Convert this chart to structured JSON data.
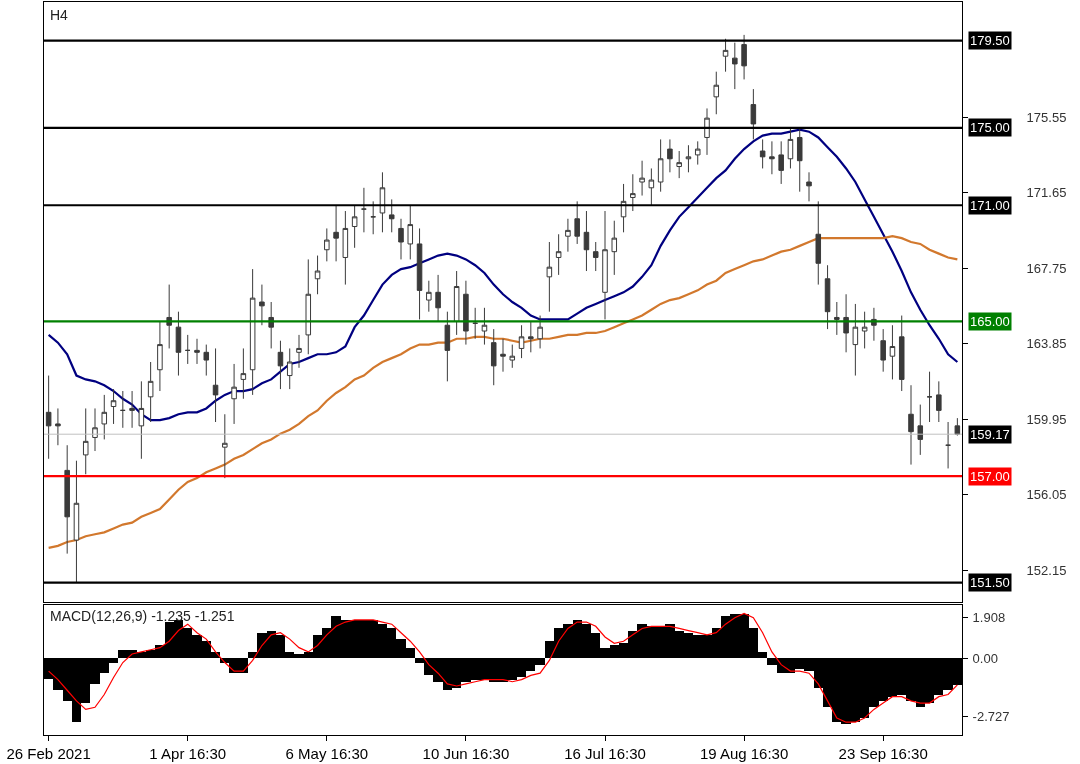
{
  "chart_data": [
    {
      "type": "candlestick",
      "title": "H4",
      "tick_labels": "y",
      "ohlc": [
        [
          160.3,
          162.2,
          157.9,
          159.6
        ],
        [
          159.7,
          160.5,
          158.6,
          159.6
        ],
        [
          157.3,
          158.6,
          153.0,
          154.9
        ],
        [
          153.7,
          157.8,
          151.5,
          155.6
        ],
        [
          158.1,
          160.5,
          157.1,
          158.8
        ],
        [
          159.0,
          160.5,
          158.3,
          159.5
        ],
        [
          159.7,
          161.2,
          158.9,
          160.3
        ],
        [
          160.6,
          161.5,
          159.7,
          160.9
        ],
        [
          160.4,
          161.4,
          159.5,
          160.4
        ],
        [
          160.5,
          161.4,
          159.5,
          160.4
        ],
        [
          159.6,
          161.9,
          157.9,
          160.5
        ],
        [
          161.1,
          162.9,
          159.8,
          161.9
        ],
        [
          162.5,
          165.0,
          161.4,
          163.8
        ],
        [
          165.2,
          166.9,
          163.6,
          164.8
        ],
        [
          164.7,
          165.5,
          162.2,
          163.4
        ],
        [
          163.5,
          164.3,
          162.8,
          163.5
        ],
        [
          163.5,
          164.1,
          162.8,
          163.4
        ],
        [
          163.4,
          163.8,
          162.2,
          163.0
        ],
        [
          161.7,
          163.6,
          159.8,
          161.2
        ],
        [
          158.5,
          160.2,
          156.9,
          158.7
        ],
        [
          161.0,
          162.8,
          159.7,
          161.6
        ],
        [
          162.0,
          163.6,
          161.0,
          162.3
        ],
        [
          162.5,
          167.7,
          161.2,
          166.2
        ],
        [
          166.0,
          166.9,
          164.8,
          165.8
        ],
        [
          165.2,
          166.0,
          163.6,
          164.7
        ],
        [
          163.4,
          164.0,
          161.5,
          162.7
        ],
        [
          162.2,
          163.6,
          161.5,
          162.9
        ],
        [
          163.4,
          164.3,
          162.6,
          163.6
        ],
        [
          164.3,
          168.2,
          163.3,
          166.4
        ],
        [
          167.2,
          168.4,
          166.4,
          167.6
        ],
        [
          168.7,
          169.8,
          168.1,
          169.2
        ],
        [
          169.6,
          171.0,
          168.1,
          169.3
        ],
        [
          168.3,
          170.7,
          166.9,
          169.8
        ],
        [
          169.9,
          171.0,
          168.8,
          170.4
        ],
        [
          170.8,
          171.9,
          169.6,
          170.8
        ],
        [
          170.4,
          171.2,
          169.5,
          170.4
        ],
        [
          170.6,
          172.7,
          169.6,
          171.9
        ],
        [
          170.5,
          171.3,
          169.6,
          170.3
        ],
        [
          169.8,
          170.3,
          168.2,
          169.1
        ],
        [
          169.0,
          171.0,
          168.2,
          170.0
        ],
        [
          169.0,
          169.8,
          165.1,
          166.6
        ],
        [
          166.1,
          167.1,
          165.5,
          166.5
        ],
        [
          166.5,
          167.4,
          165.0,
          165.7
        ],
        [
          164.8,
          165.5,
          161.9,
          163.5
        ],
        [
          165.0,
          167.6,
          164.3,
          166.8
        ],
        [
          166.4,
          167.1,
          163.8,
          164.5
        ],
        [
          164.9,
          165.7,
          164.1,
          164.9
        ],
        [
          164.5,
          165.7,
          163.8,
          164.8
        ],
        [
          163.9,
          164.6,
          161.7,
          162.7
        ],
        [
          163.3,
          164.1,
          162.4,
          163.2
        ],
        [
          163.0,
          163.8,
          162.6,
          163.2
        ],
        [
          163.6,
          164.8,
          163.1,
          164.2
        ],
        [
          164.2,
          165.0,
          163.4,
          164.1
        ],
        [
          164.1,
          165.3,
          163.6,
          164.7
        ],
        [
          167.3,
          169.1,
          165.5,
          167.8
        ],
        [
          168.3,
          169.5,
          167.4,
          168.6
        ],
        [
          169.4,
          170.3,
          168.6,
          169.7
        ],
        [
          170.3,
          171.2,
          169.0,
          169.4
        ],
        [
          169.6,
          170.7,
          167.6,
          168.7
        ],
        [
          168.6,
          169.1,
          167.6,
          168.3
        ],
        [
          166.5,
          170.7,
          165.1,
          168.7
        ],
        [
          168.6,
          170.2,
          167.4,
          169.3
        ],
        [
          170.4,
          172.1,
          169.6,
          171.2
        ],
        [
          171.4,
          172.6,
          170.7,
          171.6
        ],
        [
          172.2,
          173.3,
          171.5,
          172.4
        ],
        [
          171.9,
          172.9,
          171.0,
          172.3
        ],
        [
          172.2,
          174.4,
          171.7,
          173.4
        ],
        [
          173.9,
          174.4,
          172.7,
          173.4
        ],
        [
          173.0,
          173.8,
          172.4,
          173.2
        ],
        [
          173.4,
          174.1,
          172.7,
          173.5
        ],
        [
          173.6,
          174.3,
          173.1,
          173.9
        ],
        [
          174.5,
          176.0,
          173.6,
          175.5
        ],
        [
          176.6,
          177.9,
          175.7,
          177.2
        ],
        [
          178.7,
          179.6,
          177.9,
          179.0
        ],
        [
          178.6,
          179.4,
          177.0,
          178.3
        ],
        [
          179.3,
          179.8,
          177.5,
          178.2
        ],
        [
          176.2,
          177.0,
          174.4,
          175.2
        ],
        [
          173.8,
          174.4,
          172.9,
          173.5
        ],
        [
          173.5,
          174.3,
          172.6,
          173.4
        ],
        [
          173.6,
          174.3,
          172.1,
          172.8
        ],
        [
          173.4,
          175.0,
          172.9,
          174.4
        ],
        [
          174.5,
          175.0,
          171.7,
          173.3
        ],
        [
          172.2,
          172.7,
          171.2,
          172.0
        ],
        [
          169.5,
          171.2,
          166.9,
          168.0
        ],
        [
          167.2,
          167.9,
          164.6,
          165.5
        ],
        [
          165.2,
          166.0,
          164.3,
          165.1
        ],
        [
          165.2,
          166.4,
          163.4,
          164.4
        ],
        [
          163.8,
          165.9,
          162.2,
          164.7
        ],
        [
          164.5,
          165.5,
          163.6,
          164.7
        ],
        [
          165.1,
          165.7,
          164.0,
          164.8
        ],
        [
          164.0,
          164.6,
          162.4,
          163.0
        ],
        [
          163.2,
          164.8,
          162.0,
          163.7
        ],
        [
          164.2,
          165.3,
          161.4,
          162.0
        ],
        [
          160.2,
          161.7,
          157.6,
          159.3
        ],
        [
          159.6,
          160.7,
          158.1,
          158.9
        ],
        [
          161.1,
          162.4,
          159.8,
          161.1
        ],
        [
          161.2,
          161.9,
          159.8,
          160.4
        ],
        [
          158.6,
          159.8,
          157.4,
          158.6
        ],
        [
          159.6,
          160.0,
          159.1,
          159.17
        ]
      ],
      "series": [
        {
          "type": "line",
          "color": "#000080",
          "values": [
            164.3,
            163.9,
            163.3,
            162.2,
            162.0,
            161.9,
            161.7,
            161.4,
            161.0,
            160.7,
            160.2,
            159.9,
            159.9,
            160.0,
            160.2,
            160.3,
            160.3,
            160.5,
            160.9,
            161.2,
            161.4,
            161.4,
            161.5,
            161.8,
            162.0,
            162.4,
            162.8,
            162.9,
            163.1,
            163.3,
            163.3,
            163.4,
            163.7,
            164.7,
            165.3,
            166.1,
            166.9,
            167.4,
            167.7,
            167.8,
            168.0,
            168.2,
            168.4,
            168.5,
            168.4,
            168.2,
            167.9,
            167.5,
            166.9,
            166.4,
            166.0,
            165.7,
            165.3,
            165.1,
            165.1,
            165.1,
            165.1,
            165.4,
            165.7,
            165.9,
            166.1,
            166.3,
            166.5,
            166.8,
            167.3,
            167.9,
            168.9,
            169.7,
            170.4,
            170.9,
            171.4,
            171.9,
            172.4,
            172.8,
            173.4,
            173.9,
            174.3,
            174.6,
            174.7,
            174.7,
            174.8,
            174.9,
            174.8,
            174.5,
            174.0,
            173.5,
            172.9,
            172.2,
            171.3,
            170.4,
            169.5,
            168.6,
            167.6,
            166.5,
            165.6,
            164.8,
            164.1,
            163.3,
            162.9
          ]
        },
        {
          "type": "line",
          "color": "#d2782d",
          "values": [
            153.3,
            153.4,
            153.6,
            153.7,
            153.9,
            154.0,
            154.1,
            154.3,
            154.5,
            154.6,
            154.9,
            155.1,
            155.3,
            155.8,
            156.3,
            156.7,
            156.9,
            157.2,
            157.4,
            157.6,
            157.9,
            158.1,
            158.4,
            158.7,
            158.9,
            159.2,
            159.4,
            159.7,
            160.1,
            160.4,
            160.9,
            161.3,
            161.6,
            162.0,
            162.2,
            162.6,
            162.9,
            163.1,
            163.3,
            163.6,
            163.8,
            163.8,
            163.9,
            163.9,
            164.1,
            164.1,
            164.2,
            164.2,
            164.1,
            164.1,
            164.0,
            163.9,
            164.0,
            164.1,
            164.1,
            164.2,
            164.3,
            164.3,
            164.4,
            164.4,
            164.5,
            164.7,
            164.9,
            165.1,
            165.3,
            165.6,
            165.9,
            166.1,
            166.2,
            166.4,
            166.6,
            166.9,
            167.1,
            167.5,
            167.7,
            167.9,
            168.1,
            168.2,
            168.4,
            168.6,
            168.7,
            168.9,
            169.1,
            169.3,
            169.3,
            169.3,
            169.3,
            169.3,
            169.3,
            169.3,
            169.3,
            169.4,
            169.3,
            169.1,
            169.0,
            168.7,
            168.5,
            168.3,
            168.2
          ]
        }
      ],
      "ylim": [
        150.5,
        181.5
      ],
      "yticks": [
        152.15,
        156.05,
        159.95,
        163.85,
        167.75,
        171.65,
        175.55
      ],
      "ref_lines": [
        {
          "axis": "y",
          "value": 179.5,
          "label": "179.50",
          "color": "#000000"
        },
        {
          "axis": "y",
          "value": 175.0,
          "label": "175.00",
          "color": "#000000"
        },
        {
          "axis": "y",
          "value": 171.0,
          "label": "171.00",
          "color": "#000000"
        },
        {
          "axis": "y",
          "value": 165.0,
          "label": "165.00",
          "color": "#008000"
        },
        {
          "axis": "y",
          "value": 159.17,
          "label": "159.17",
          "color": "#c0c0c0"
        },
        {
          "axis": "y",
          "value": 157.0,
          "label": "157.00",
          "color": "#ff0000"
        },
        {
          "axis": "y",
          "value": 151.5,
          "label": "151.50",
          "color": "#000000"
        }
      ]
    },
    {
      "type": "bar",
      "title": "MACD(12,26,9) -1.235 -1.251",
      "categories": [
        "26 Feb 2021",
        null,
        null,
        null,
        null,
        null,
        null,
        null,
        null,
        null,
        null,
        null,
        null,
        null,
        null,
        "1 Apr 16:30",
        null,
        null,
        null,
        null,
        null,
        null,
        null,
        null,
        null,
        null,
        null,
        null,
        null,
        null,
        "6 May 16:30",
        null,
        null,
        null,
        null,
        null,
        null,
        null,
        null,
        null,
        null,
        null,
        null,
        null,
        null,
        "10 Jun 16:30",
        null,
        null,
        null,
        null,
        null,
        null,
        null,
        null,
        null,
        null,
        null,
        null,
        null,
        null,
        "16 Jul 16:30",
        null,
        null,
        null,
        null,
        null,
        null,
        null,
        null,
        null,
        null,
        null,
        null,
        null,
        null,
        "19 Aug 16:30",
        null,
        null,
        null,
        null,
        null,
        null,
        null,
        null,
        null,
        null,
        null,
        null,
        null,
        null,
        "23 Sep 16:30",
        null,
        null,
        null,
        null,
        null,
        null,
        null,
        null
      ],
      "series": [
        {
          "type": "bar",
          "color": "#000000",
          "values": [
            -0.97,
            -1.5,
            -2.0,
            -3.0,
            -2.1,
            -1.2,
            -0.7,
            -0.2,
            0.4,
            0.4,
            0.3,
            0.4,
            0.6,
            1.7,
            1.8,
            1.4,
            1.1,
            0.8,
            0.3,
            -0.2,
            -0.7,
            -0.7,
            0.3,
            1.2,
            1.3,
            1.1,
            0.3,
            0.2,
            0.3,
            1.1,
            1.4,
            2.0,
            1.8,
            1.8,
            1.8,
            1.8,
            1.6,
            1.4,
            0.9,
            0.5,
            -0.2,
            -0.8,
            -1.1,
            -1.5,
            -1.4,
            -1.1,
            -1.0,
            -1.0,
            -1.1,
            -1.1,
            -1.0,
            -0.9,
            -0.6,
            -0.3,
            0.8,
            1.4,
            1.6,
            1.8,
            1.6,
            1.2,
            0.5,
            0.6,
            0.7,
            1.3,
            1.6,
            1.5,
            1.5,
            1.6,
            1.3,
            1.2,
            1.1,
            1.1,
            1.4,
            2.0,
            2.1,
            2.1,
            1.4,
            0.3,
            -0.3,
            -0.7,
            -0.7,
            -0.5,
            -0.6,
            -1.4,
            -2.3,
            -3.0,
            -3.1,
            -3.0,
            -2.8,
            -2.3,
            -2.0,
            -1.8,
            -1.7,
            -2.0,
            -2.3,
            -2.1,
            -1.7,
            -1.5,
            -1.24
          ]
        },
        {
          "type": "line",
          "color": "#ff0000",
          "values": [
            -0.6,
            -1.0,
            -1.5,
            -2.0,
            -2.4,
            -2.3,
            -1.7,
            -0.9,
            -0.2,
            0.2,
            0.3,
            0.4,
            0.5,
            0.8,
            1.3,
            1.6,
            1.2,
            0.9,
            0.3,
            -0.2,
            -0.6,
            -0.6,
            -0.1,
            0.6,
            1.1,
            1.2,
            0.9,
            0.5,
            0.3,
            0.6,
            1.1,
            1.5,
            1.7,
            1.8,
            1.8,
            1.8,
            1.7,
            1.6,
            1.2,
            0.8,
            0.3,
            -0.3,
            -0.7,
            -1.2,
            -1.3,
            -1.2,
            -1.1,
            -1.0,
            -1.0,
            -1.0,
            -1.1,
            -1.0,
            -0.8,
            -0.7,
            -0.1,
            0.8,
            1.4,
            1.7,
            1.7,
            1.5,
            1.0,
            0.7,
            0.8,
            1.1,
            1.4,
            1.5,
            1.5,
            1.5,
            1.4,
            1.3,
            1.2,
            1.1,
            1.2,
            1.6,
            1.9,
            2.1,
            1.9,
            1.2,
            0.3,
            -0.3,
            -0.6,
            -0.6,
            -0.7,
            -1.2,
            -2.0,
            -2.8,
            -3.0,
            -3.0,
            -2.8,
            -2.4,
            -2.1,
            -1.8,
            -1.8,
            -2.0,
            -2.1,
            -2.1,
            -1.8,
            -1.7,
            -1.25
          ]
        }
      ],
      "ylim": [
        -3.6,
        2.5
      ],
      "yticks": [
        1.908,
        {
          "value": 0,
          "label": "0.00"
        },
        -2.727
      ]
    }
  ]
}
